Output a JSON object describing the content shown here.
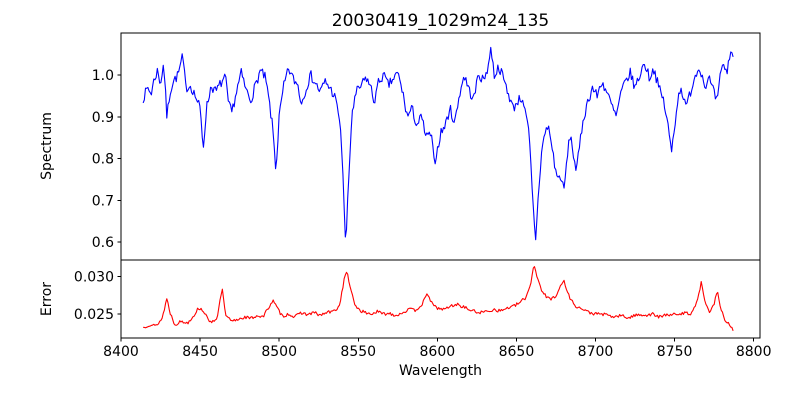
{
  "chart_data": {
    "type": "line",
    "title": "20030419_1029m24_135",
    "xlabel": "Wavelength",
    "x_range": [
      8400,
      8804
    ],
    "x_ticks": [
      "8400",
      "8450",
      "8500",
      "8550",
      "8600",
      "8650",
      "8700",
      "8750",
      "8800"
    ],
    "grid": false,
    "legend": "none",
    "panels": [
      {
        "name": "spectrum",
        "ylabel": "Spectrum",
        "ylim": [
          0.557,
          1.101
        ],
        "y_ticks": [
          1.0,
          0.9,
          0.8,
          0.7,
          0.6
        ],
        "y_tick_labels": [
          "1.0",
          "0.9",
          "0.8",
          "0.7",
          "0.6"
        ],
        "series": {
          "name": "spectrum-flux",
          "color": "#0000ff",
          "noise_amplitude": 0.012,
          "noise_seed": 7,
          "n_points": 500,
          "anchors": [
            [
              8414,
              0.945
            ],
            [
              8417,
              0.97
            ],
            [
              8419,
              0.955
            ],
            [
              8421,
              0.99
            ],
            [
              8423,
              1.01
            ],
            [
              8425,
              0.98
            ],
            [
              8427,
              1.03
            ],
            [
              8429,
              0.9
            ],
            [
              8431,
              0.96
            ],
            [
              8433,
              0.985
            ],
            [
              8436,
              1.0
            ],
            [
              8439,
              1.045
            ],
            [
              8441,
              0.97
            ],
            [
              8444,
              0.975
            ],
            [
              8447,
              0.95
            ],
            [
              8450,
              0.92
            ],
            [
              8452,
              0.825
            ],
            [
              8454,
              0.92
            ],
            [
              8457,
              0.975
            ],
            [
              8460,
              0.96
            ],
            [
              8463,
              0.98
            ],
            [
              8466,
              0.995
            ],
            [
              8468,
              0.93
            ],
            [
              8470,
              0.91
            ],
            [
              8473,
              0.96
            ],
            [
              8476,
              1.005
            ],
            [
              8479,
              0.965
            ],
            [
              8482,
              0.94
            ],
            [
              8485,
              0.975
            ],
            [
              8488,
              1.01
            ],
            [
              8491,
              0.995
            ],
            [
              8493,
              0.955
            ],
            [
              8496,
              0.87
            ],
            [
              8498,
              0.77
            ],
            [
              8500,
              0.9
            ],
            [
              8503,
              0.975
            ],
            [
              8506,
              1.015
            ],
            [
              8509,
              0.99
            ],
            [
              8512,
              0.975
            ],
            [
              8514,
              0.93
            ],
            [
              8517,
              0.97
            ],
            [
              8520,
              1.0
            ],
            [
              8523,
              0.98
            ],
            [
              8526,
              0.96
            ],
            [
              8529,
              0.985
            ],
            [
              8532,
              0.97
            ],
            [
              8535,
              0.95
            ],
            [
              8538,
              0.9
            ],
            [
              8540,
              0.8
            ],
            [
              8542,
              0.585
            ],
            [
              8544,
              0.75
            ],
            [
              8546,
              0.91
            ],
            [
              8549,
              0.96
            ],
            [
              8552,
              0.975
            ],
            [
              8555,
              0.995
            ],
            [
              8558,
              0.97
            ],
            [
              8560,
              0.935
            ],
            [
              8563,
              0.985
            ],
            [
              8566,
              1.0
            ],
            [
              8569,
              0.975
            ],
            [
              8572,
              0.99
            ],
            [
              8575,
              1.005
            ],
            [
              8578,
              0.96
            ],
            [
              8581,
              0.9
            ],
            [
              8584,
              0.92
            ],
            [
              8587,
              0.88
            ],
            [
              8590,
              0.9
            ],
            [
              8593,
              0.85
            ],
            [
              8596,
              0.86
            ],
            [
              8598,
              0.79
            ],
            [
              8600,
              0.82
            ],
            [
              8602,
              0.86
            ],
            [
              8605,
              0.88
            ],
            [
              8608,
              0.92
            ],
            [
              8611,
              0.885
            ],
            [
              8614,
              0.955
            ],
            [
              8617,
              1.0
            ],
            [
              8620,
              0.965
            ],
            [
              8623,
              0.94
            ],
            [
              8626,
              1.005
            ],
            [
              8629,
              0.985
            ],
            [
              8632,
              1.02
            ],
            [
              8634,
              1.065
            ],
            [
              8636,
              1.0
            ],
            [
              8639,
              1.02
            ],
            [
              8642,
              0.99
            ],
            [
              8645,
              0.955
            ],
            [
              8648,
              0.92
            ],
            [
              8651,
              0.94
            ],
            [
              8654,
              0.945
            ],
            [
              8656,
              0.9
            ],
            [
              8658,
              0.86
            ],
            [
              8660,
              0.72
            ],
            [
              8662,
              0.6
            ],
            [
              8664,
              0.72
            ],
            [
              8666,
              0.82
            ],
            [
              8668,
              0.86
            ],
            [
              8670,
              0.88
            ],
            [
              8672,
              0.84
            ],
            [
              8674,
              0.79
            ],
            [
              8676,
              0.75
            ],
            [
              8678,
              0.76
            ],
            [
              8680,
              0.72
            ],
            [
              8682,
              0.8
            ],
            [
              8684,
              0.86
            ],
            [
              8686,
              0.81
            ],
            [
              8688,
              0.77
            ],
            [
              8690,
              0.83
            ],
            [
              8692,
              0.89
            ],
            [
              8695,
              0.935
            ],
            [
              8698,
              0.97
            ],
            [
              8701,
              0.95
            ],
            [
              8704,
              0.985
            ],
            [
              8707,
              0.96
            ],
            [
              8710,
              0.93
            ],
            [
              8713,
              0.9
            ],
            [
              8716,
              0.955
            ],
            [
              8719,
              0.985
            ],
            [
              8722,
              1.005
            ],
            [
              8725,
              0.97
            ],
            [
              8728,
              1.0
            ],
            [
              8731,
              1.03
            ],
            [
              8734,
              0.995
            ],
            [
              8737,
              1.015
            ],
            [
              8740,
              0.97
            ],
            [
              8743,
              0.94
            ],
            [
              8746,
              0.875
            ],
            [
              8748,
              0.815
            ],
            [
              8750,
              0.88
            ],
            [
              8752,
              0.94
            ],
            [
              8754,
              0.975
            ],
            [
              8757,
              0.92
            ],
            [
              8760,
              0.96
            ],
            [
              8763,
              1.0
            ],
            [
              8766,
              1.02
            ],
            [
              8769,
              0.975
            ],
            [
              8772,
              0.99
            ],
            [
              8775,
              0.955
            ],
            [
              8777,
              0.935
            ],
            [
              8779,
              1.0
            ],
            [
              8781,
              1.03
            ],
            [
              8783,
              1.0
            ],
            [
              8785,
              1.055
            ],
            [
              8787,
              1.05
            ]
          ]
        }
      },
      {
        "name": "error",
        "ylabel": "Error",
        "ylim": [
          0.0218,
          0.0322
        ],
        "y_ticks": [
          0.03,
          0.025
        ],
        "y_tick_labels": [
          "0.030",
          "0.025"
        ],
        "series": {
          "name": "error-values",
          "color": "#ff0000",
          "noise_amplitude": 0.00022,
          "noise_seed": 13,
          "n_points": 500,
          "anchors": [
            [
              8414,
              0.0232
            ],
            [
              8418,
              0.0236
            ],
            [
              8422,
              0.0234
            ],
            [
              8426,
              0.0244
            ],
            [
              8429,
              0.0271
            ],
            [
              8431,
              0.0252
            ],
            [
              8434,
              0.0236
            ],
            [
              8438,
              0.024
            ],
            [
              8442,
              0.0238
            ],
            [
              8446,
              0.0248
            ],
            [
              8449,
              0.0258
            ],
            [
              8452,
              0.0255
            ],
            [
              8455,
              0.0242
            ],
            [
              8458,
              0.024
            ],
            [
              8461,
              0.0246
            ],
            [
              8464,
              0.0285
            ],
            [
              8466,
              0.0248
            ],
            [
              8470,
              0.024
            ],
            [
              8474,
              0.0243
            ],
            [
              8478,
              0.0246
            ],
            [
              8482,
              0.0244
            ],
            [
              8486,
              0.0248
            ],
            [
              8490,
              0.0246
            ],
            [
              8493,
              0.0258
            ],
            [
              8496,
              0.0268
            ],
            [
              8499,
              0.0257
            ],
            [
              8502,
              0.0247
            ],
            [
              8506,
              0.025
            ],
            [
              8510,
              0.0246
            ],
            [
              8514,
              0.0252
            ],
            [
              8518,
              0.0249
            ],
            [
              8522,
              0.0252
            ],
            [
              8526,
              0.0248
            ],
            [
              8530,
              0.0252
            ],
            [
              8534,
              0.0253
            ],
            [
              8538,
              0.026
            ],
            [
              8541,
              0.0295
            ],
            [
              8543,
              0.0308
            ],
            [
              8545,
              0.0283
            ],
            [
              8548,
              0.0262
            ],
            [
              8551,
              0.0255
            ],
            [
              8554,
              0.0252
            ],
            [
              8558,
              0.025
            ],
            [
              8562,
              0.0253
            ],
            [
              8566,
              0.025
            ],
            [
              8570,
              0.0251
            ],
            [
              8574,
              0.0248
            ],
            [
              8578,
              0.0252
            ],
            [
              8582,
              0.0256
            ],
            [
              8586,
              0.0255
            ],
            [
              8590,
              0.0262
            ],
            [
              8594,
              0.0277
            ],
            [
              8597,
              0.0262
            ],
            [
              8600,
              0.0258
            ],
            [
              8604,
              0.0256
            ],
            [
              8608,
              0.026
            ],
            [
              8612,
              0.0263
            ],
            [
              8616,
              0.026
            ],
            [
              8620,
              0.0256
            ],
            [
              8624,
              0.0253
            ],
            [
              8628,
              0.0252
            ],
            [
              8632,
              0.0254
            ],
            [
              8636,
              0.0256
            ],
            [
              8640,
              0.0254
            ],
            [
              8644,
              0.0258
            ],
            [
              8648,
              0.026
            ],
            [
              8652,
              0.0265
            ],
            [
              8656,
              0.0272
            ],
            [
              8659,
              0.029
            ],
            [
              8661,
              0.0317
            ],
            [
              8663,
              0.03
            ],
            [
              8666,
              0.0282
            ],
            [
              8669,
              0.0272
            ],
            [
              8672,
              0.027
            ],
            [
              8675,
              0.0275
            ],
            [
              8678,
              0.0287
            ],
            [
              8680,
              0.0295
            ],
            [
              8682,
              0.028
            ],
            [
              8685,
              0.0267
            ],
            [
              8688,
              0.026
            ],
            [
              8692,
              0.0256
            ],
            [
              8696,
              0.0252
            ],
            [
              8700,
              0.025
            ],
            [
              8704,
              0.025
            ],
            [
              8708,
              0.0248
            ],
            [
              8712,
              0.0246
            ],
            [
              8716,
              0.0248
            ],
            [
              8720,
              0.0245
            ],
            [
              8724,
              0.0247
            ],
            [
              8728,
              0.025
            ],
            [
              8732,
              0.0248
            ],
            [
              8736,
              0.025
            ],
            [
              8740,
              0.0246
            ],
            [
              8744,
              0.0248
            ],
            [
              8748,
              0.025
            ],
            [
              8752,
              0.0248
            ],
            [
              8756,
              0.0252
            ],
            [
              8760,
              0.025
            ],
            [
              8764,
              0.0265
            ],
            [
              8767,
              0.0293
            ],
            [
              8769,
              0.027
            ],
            [
              8772,
              0.0252
            ],
            [
              8775,
              0.0262
            ],
            [
              8777,
              0.0283
            ],
            [
              8779,
              0.026
            ],
            [
              8781,
              0.0245
            ],
            [
              8783,
              0.024
            ],
            [
              8785,
              0.0235
            ],
            [
              8787,
              0.0228
            ]
          ]
        }
      }
    ]
  }
}
